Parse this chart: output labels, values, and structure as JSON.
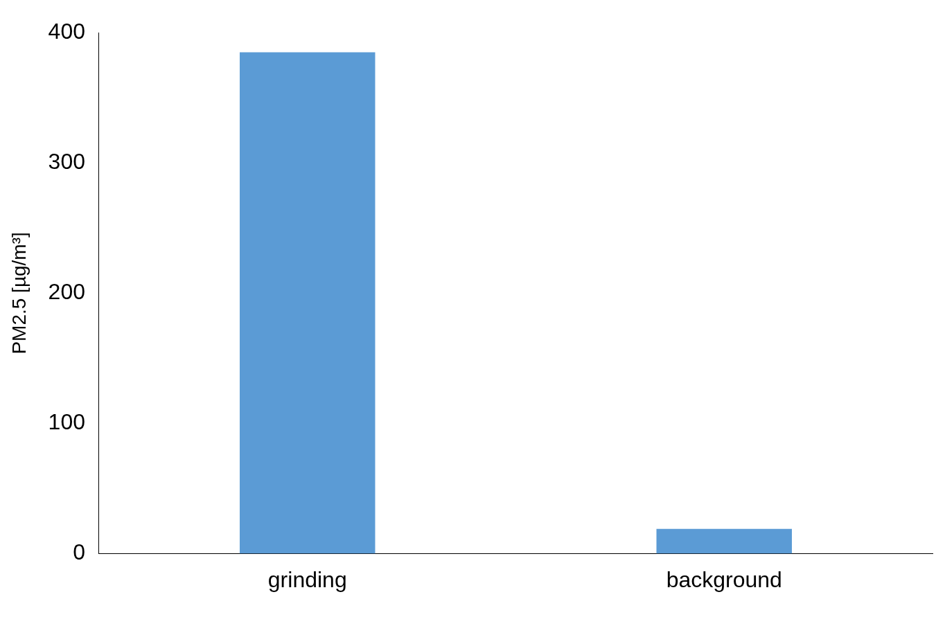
{
  "chart_data": {
    "type": "bar",
    "ylabel": "PM2.5 [µg/m³]",
    "categories": [
      "grinding",
      "background"
    ],
    "values": [
      385,
      19
    ],
    "color": "#5b9bd5",
    "ylim": [
      0,
      400
    ],
    "yticks": [
      0,
      100,
      200,
      300,
      400
    ],
    "grid": false,
    "legend": false
  }
}
